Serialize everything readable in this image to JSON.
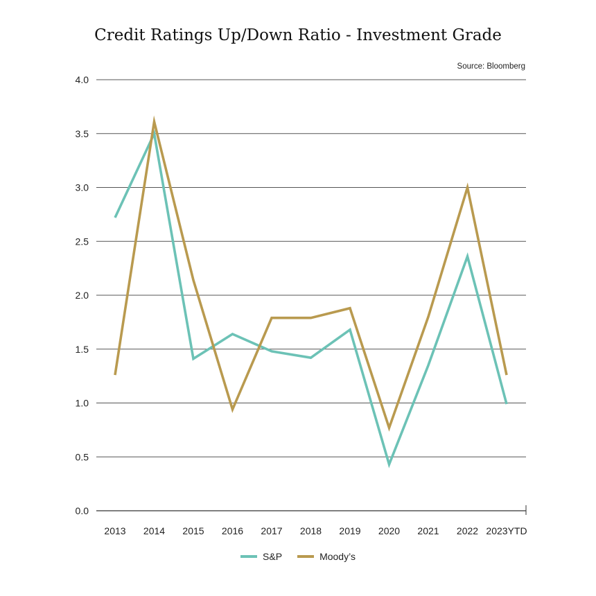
{
  "chart_data": {
    "type": "line",
    "title": "Credit Ratings Up/Down Ratio - Investment Grade",
    "source": "Source: Bloomberg",
    "categories": [
      "2013",
      "2014",
      "2015",
      "2016",
      "2017",
      "2018",
      "2019",
      "2020",
      "2021",
      "2022",
      "2023YTD"
    ],
    "series": [
      {
        "name": "S&P",
        "color": "#6cc2b6",
        "values": [
          2.72,
          3.5,
          1.41,
          1.64,
          1.48,
          1.42,
          1.68,
          0.43,
          1.35,
          2.36,
          0.99
        ]
      },
      {
        "name": "Moody’s",
        "color": "#b99a4f",
        "values": [
          1.26,
          3.61,
          2.14,
          0.94,
          1.79,
          1.79,
          1.88,
          0.77,
          1.8,
          3.0,
          1.26
        ]
      }
    ],
    "ylim": [
      0,
      4
    ],
    "yticks": [
      "0.0",
      "0.5",
      "1.0",
      "1.5",
      "2.0",
      "2.5",
      "3.0",
      "3.5",
      "4.0"
    ],
    "grid": true,
    "legend_position": "bottom"
  }
}
